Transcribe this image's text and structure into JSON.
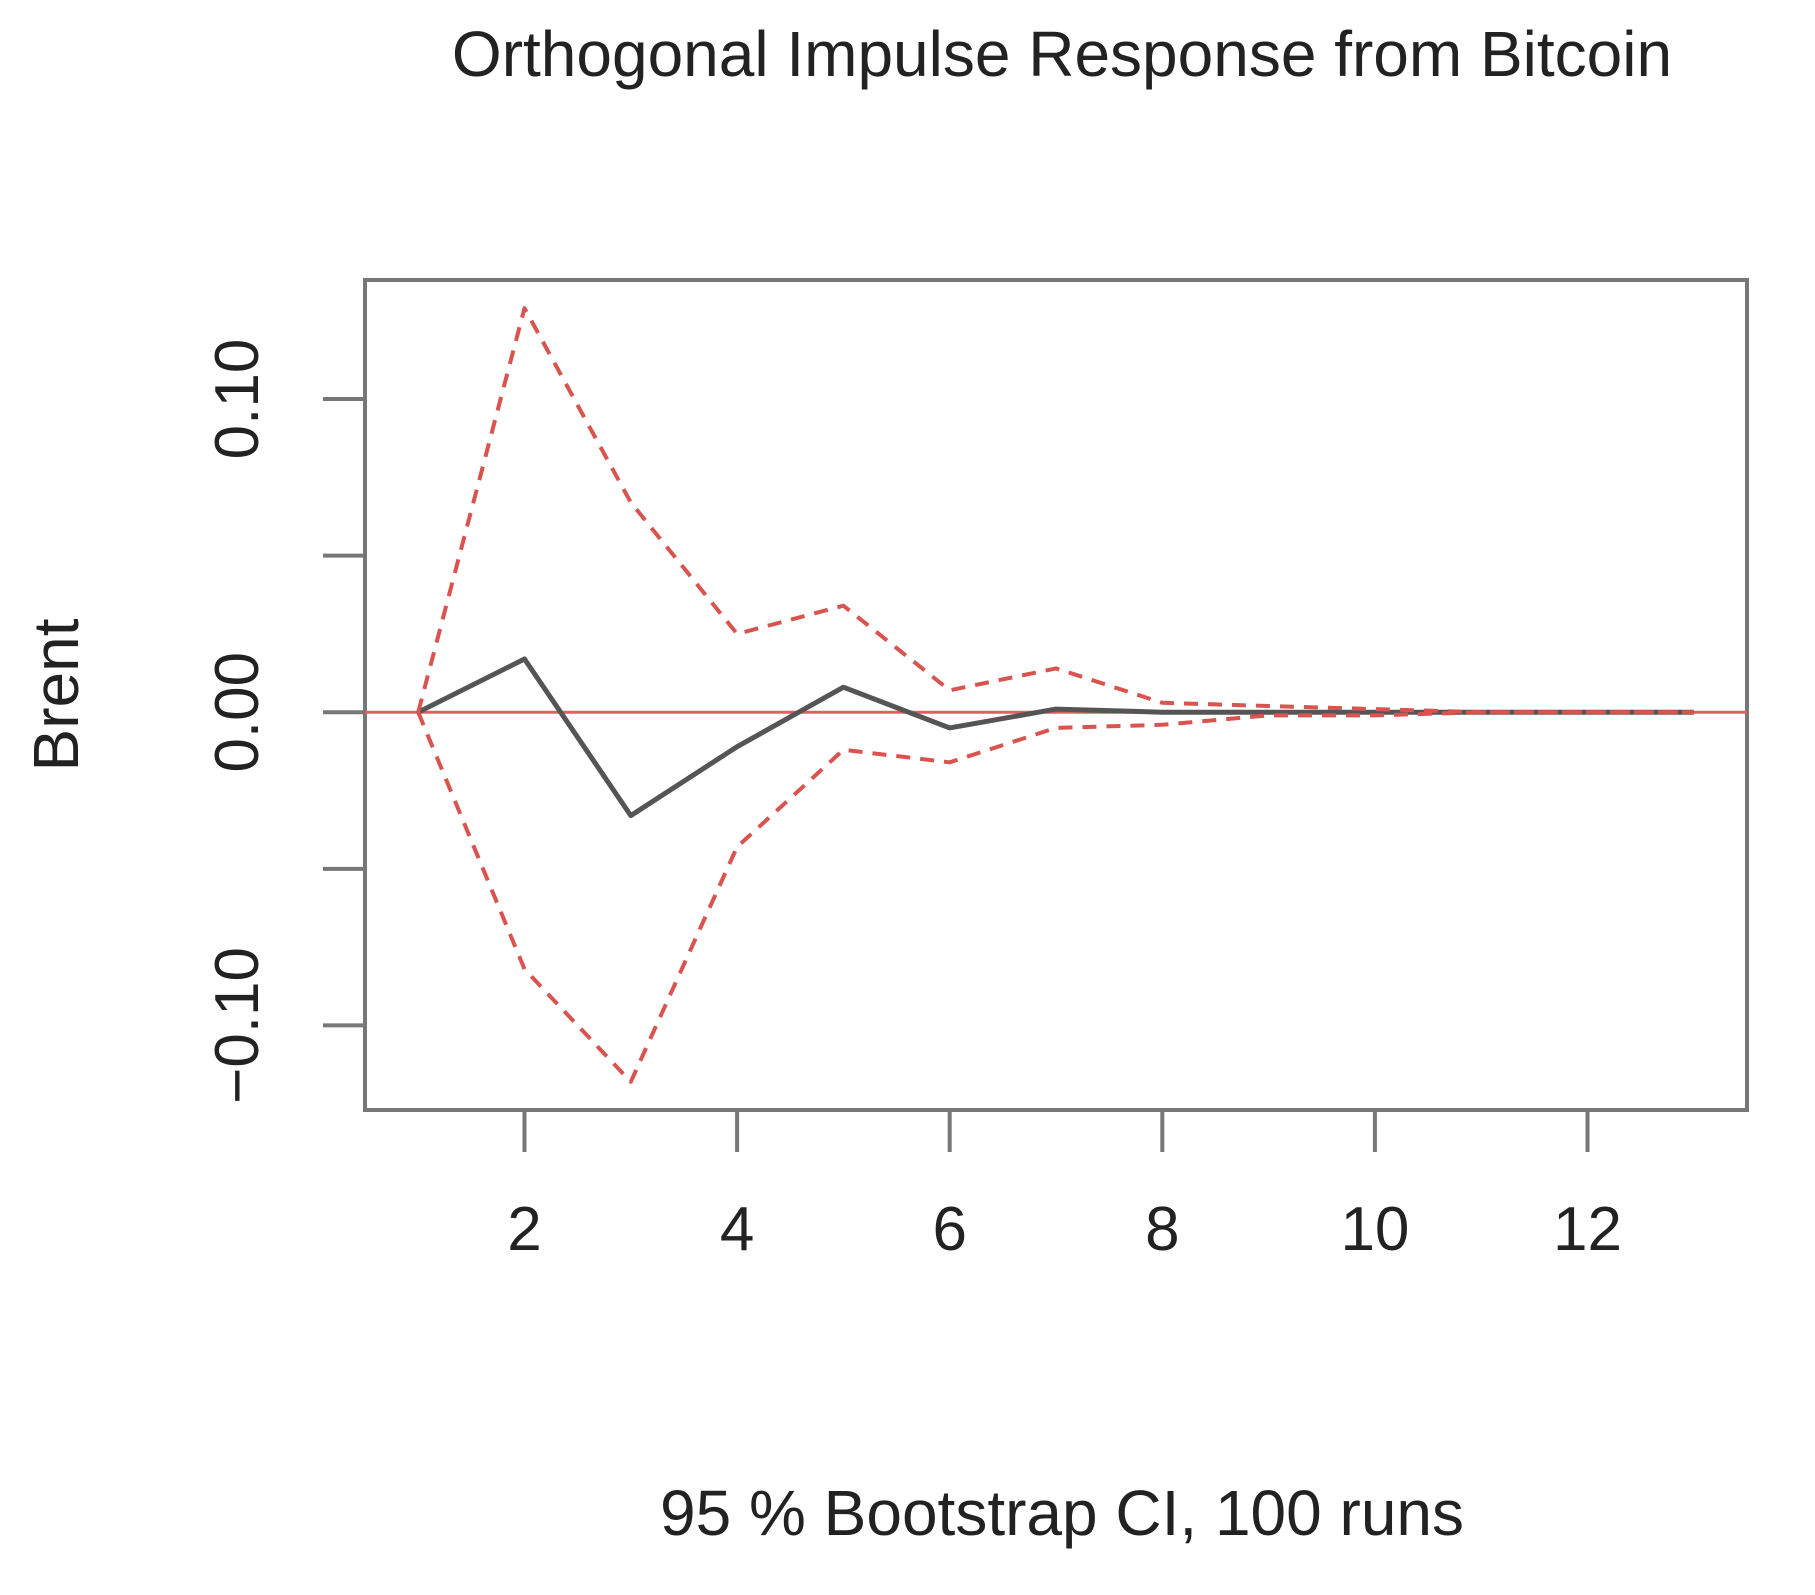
{
  "chart_data": {
    "type": "line",
    "title": "Orthogonal Impulse Response from Bitcoin",
    "xlabel": "95 % Bootstrap CI,  100 runs",
    "ylabel": "Brent",
    "xlim": [
      0.5,
      13.5
    ],
    "ylim": [
      -0.127,
      0.138
    ],
    "x_ticks": [
      2,
      4,
      6,
      8,
      10,
      12
    ],
    "x_tick_labels": [
      "2",
      "4",
      "6",
      "8",
      "10",
      "12"
    ],
    "y_ticks": [
      -0.1,
      -0.05,
      0.0,
      0.05,
      0.1
    ],
    "y_tick_labels": [
      "-0.10",
      "",
      "0.00",
      "",
      "0.10"
    ],
    "zero_line": 0,
    "grid": false,
    "legend": "none",
    "x": [
      1,
      2,
      3,
      4,
      5,
      6,
      7,
      8,
      9,
      10,
      11,
      12,
      13
    ],
    "series": [
      {
        "role": "response",
        "style": "solid",
        "color": "#555555",
        "values": [
          0.0,
          0.017,
          -0.033,
          -0.011,
          0.008,
          -0.005,
          0.001,
          0.0,
          0.0,
          0.0,
          0.0,
          0.0,
          0.0
        ]
      },
      {
        "role": "upper",
        "style": "dashed",
        "color": "#d9534f",
        "values": [
          0.0,
          0.129,
          0.067,
          0.025,
          0.034,
          0.007,
          0.014,
          0.003,
          0.002,
          0.001,
          0.0,
          0.0,
          0.0
        ]
      },
      {
        "role": "lower",
        "style": "dashed",
        "color": "#d9534f",
        "values": [
          0.0,
          -0.082,
          -0.118,
          -0.043,
          -0.012,
          -0.016,
          -0.005,
          -0.004,
          -0.001,
          -0.001,
          0.0,
          0.0,
          0.0
        ]
      }
    ],
    "colors": {
      "axis": "#777777",
      "zero_line": "#e06060",
      "text": "#222222"
    }
  }
}
